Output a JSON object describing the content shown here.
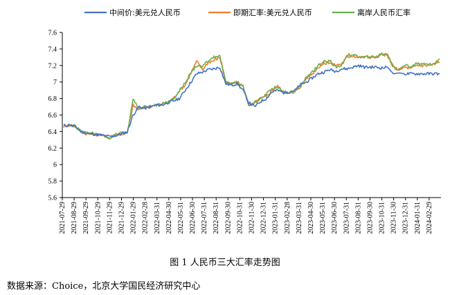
{
  "caption": "图 1 人民币三大汇率走势图",
  "source": "数据来源：Choice，北京大学国民经济研究中心",
  "chart_data": {
    "type": "line",
    "title": "",
    "xlabel": "",
    "ylabel": "",
    "ylim": [
      5.6,
      7.6
    ],
    "yticks": [
      "7.6",
      "7.4",
      "7.2",
      "7",
      "6.8",
      "6.6",
      "6.4",
      "6.2",
      "6",
      "5.8",
      "5.6"
    ],
    "xticks": [
      "2021-07-29",
      "2021-08-29",
      "2021-09-29",
      "2021-10-29",
      "2021-11-29",
      "2021-12-29",
      "2022-01-29",
      "2022-02-28",
      "2022-03-31",
      "2022-04-30",
      "2022-05-31",
      "2022-06-30",
      "2022-07-31",
      "2022-08-31",
      "2022-09-30",
      "2022-10-31",
      "2022-11-30",
      "2022-12-31",
      "2023-01-31",
      "2023-02-28",
      "2023-03-31",
      "2023-04-30",
      "2023-05-31",
      "2023-06-30",
      "2023-07-31",
      "2023-08-31",
      "2023-09-30",
      "2023-10-31",
      "2023-11-30",
      "2023-12-31",
      "2024-01-31",
      "2024-02-29"
    ],
    "grid": false,
    "legend_position": "top",
    "series": [
      {
        "name": "中间价:美元兑人民币",
        "color": "#4472C4",
        "values": [
          6.47,
          6.48,
          6.46,
          6.4,
          6.38,
          6.37,
          6.36,
          6.35,
          6.34,
          6.35,
          6.37,
          6.4,
          6.6,
          6.7,
          6.68,
          6.7,
          6.72,
          6.72,
          6.75,
          6.77,
          6.8,
          6.9,
          7.0,
          7.1,
          7.12,
          7.15,
          7.16,
          7.18,
          6.98,
          6.96,
          6.98,
          6.9,
          6.75,
          6.7,
          6.76,
          6.8,
          6.88,
          6.9,
          6.87,
          6.88,
          6.9,
          6.97,
          7.0,
          7.05,
          7.1,
          7.12,
          7.15,
          7.13,
          7.16,
          7.16,
          7.18,
          7.2,
          7.18,
          7.18,
          7.18,
          7.17,
          7.18,
          7.1,
          7.11,
          7.1,
          7.1,
          7.1,
          7.1,
          7.1,
          7.1,
          7.1
        ]
      },
      {
        "name": "即期汇率:美元兑人民币",
        "color": "#ED7D31",
        "values": [
          6.46,
          6.48,
          6.46,
          6.4,
          6.37,
          6.37,
          6.36,
          6.35,
          6.32,
          6.36,
          6.37,
          6.38,
          6.72,
          6.66,
          6.7,
          6.7,
          6.72,
          6.74,
          6.75,
          6.8,
          6.9,
          6.96,
          7.11,
          7.25,
          7.15,
          7.24,
          7.26,
          7.3,
          7.0,
          6.97,
          7.0,
          6.95,
          6.72,
          6.74,
          6.8,
          6.82,
          6.9,
          6.95,
          6.88,
          6.88,
          6.88,
          6.95,
          7.05,
          7.1,
          7.18,
          7.22,
          7.24,
          7.2,
          7.22,
          7.3,
          7.32,
          7.3,
          7.3,
          7.3,
          7.3,
          7.33,
          7.33,
          7.18,
          7.15,
          7.18,
          7.16,
          7.2,
          7.2,
          7.2,
          7.21,
          7.24
        ]
      },
      {
        "name": "离岸人民币汇率",
        "color": "#70AD47",
        "values": [
          6.47,
          6.49,
          6.46,
          6.4,
          6.38,
          6.38,
          6.36,
          6.35,
          6.32,
          6.36,
          6.38,
          6.38,
          6.8,
          6.68,
          6.7,
          6.7,
          6.72,
          6.74,
          6.75,
          6.8,
          6.9,
          6.98,
          7.12,
          7.2,
          7.18,
          7.26,
          7.3,
          7.32,
          7.0,
          6.98,
          6.99,
          6.95,
          6.72,
          6.75,
          6.8,
          6.85,
          6.92,
          6.95,
          6.87,
          6.88,
          6.88,
          6.95,
          7.06,
          7.12,
          7.2,
          7.24,
          7.26,
          7.18,
          7.2,
          7.32,
          7.34,
          7.3,
          7.3,
          7.31,
          7.3,
          7.34,
          7.32,
          7.18,
          7.15,
          7.2,
          7.18,
          7.22,
          7.22,
          7.21,
          7.22,
          7.28
        ]
      }
    ]
  }
}
